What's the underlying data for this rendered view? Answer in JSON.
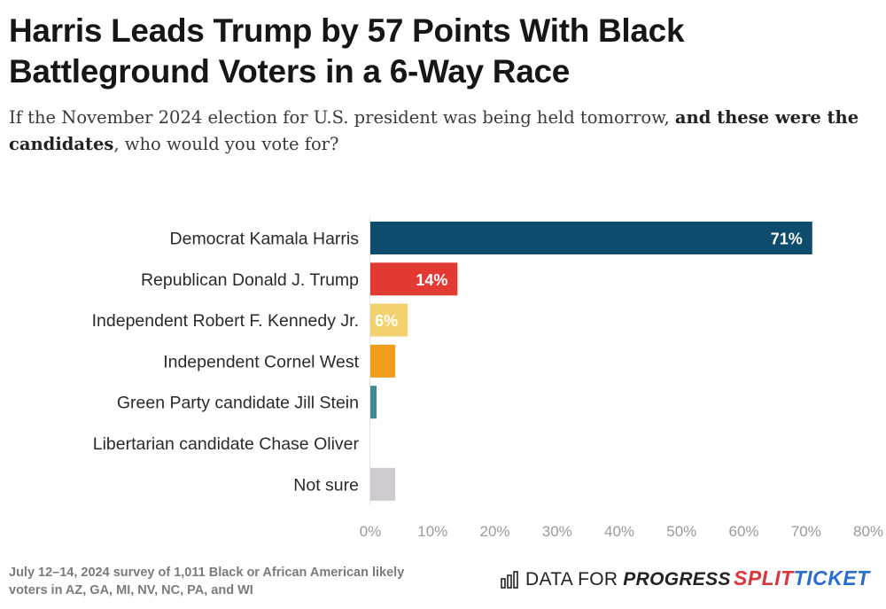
{
  "title": "Harris Leads Trump by 57 Points With Black Battleground Voters in a 6-Way Race",
  "subtitle": {
    "part1": "If the November 2024 election for U.S. president was being held tomorrow, ",
    "bold": "and these were the candidates",
    "part2": ", who would you vote for?"
  },
  "chart_data": {
    "type": "bar",
    "orientation": "horizontal",
    "categories": [
      "Democrat Kamala Harris",
      "Republican Donald J. Trump",
      "Independent Robert F. Kennedy Jr.",
      "Independent Cornel West",
      "Green Party candidate Jill Stein",
      "Libertarian candidate Chase Oliver",
      "Not sure"
    ],
    "values": [
      71,
      14,
      6,
      4,
      1,
      0,
      4
    ],
    "data_labels": [
      "71%",
      "14%",
      "6%",
      "",
      "",
      "",
      ""
    ],
    "colors": [
      "#0e4c6e",
      "#e03a33",
      "#f2d16e",
      "#f29c1b",
      "#3f8a93",
      "#e6e6e6",
      "#cfcbd0"
    ],
    "label_colors": [
      "#ffffff",
      "#ffffff",
      "#ffffff",
      "#ffffff",
      "#ffffff",
      "#ffffff",
      "#ffffff"
    ],
    "xlim": [
      0,
      80
    ],
    "xticks": [
      0,
      10,
      20,
      30,
      40,
      50,
      60,
      70,
      80
    ],
    "xtick_labels": [
      "0%",
      "10%",
      "20%",
      "30%",
      "40%",
      "50%",
      "60%",
      "70%",
      "80%"
    ],
    "grid": false,
    "legend": "none"
  },
  "footer": {
    "note": "July 12–14, 2024 survey of 1,011 Black or African American likely voters in AZ, GA, MI, NV, NC, PA, and WI",
    "logo_dfp_a": "DATA FOR",
    "logo_dfp_b": "PROGRESS",
    "logo_st_a": "SPLIT",
    "logo_st_b": "TICKET"
  }
}
